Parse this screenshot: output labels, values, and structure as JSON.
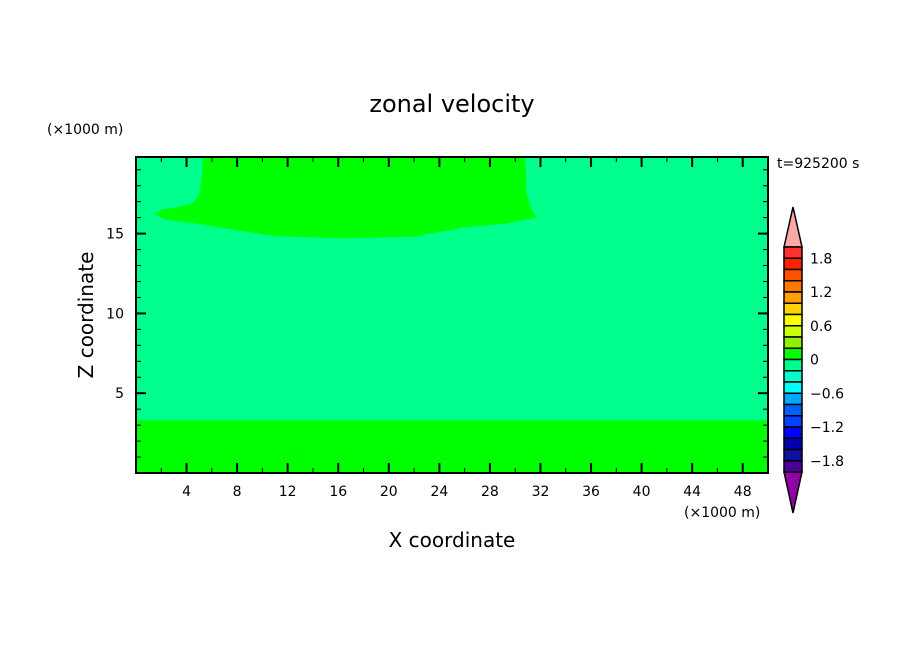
{
  "chart_data": {
    "type": "heatmap",
    "title": "zonal velocity",
    "xlabel": "X coordinate",
    "ylabel": "Z coordinate",
    "x_unit": "(×1000 m)",
    "y_unit": "(×1000 m)",
    "time_label": "t=925200 s",
    "xlim": [
      0,
      50
    ],
    "ylim": [
      0,
      19.8
    ],
    "x_ticks": [
      4,
      8,
      12,
      16,
      20,
      24,
      28,
      32,
      36,
      40,
      44,
      48
    ],
    "y_ticks": [
      5,
      10,
      15
    ],
    "background_level": [
      -0.2,
      0
    ],
    "regions": [
      {
        "level": [
          0,
          0.2
        ],
        "polygon": [
          [
            0,
            0
          ],
          [
            50,
            0
          ],
          [
            50,
            3.3
          ],
          [
            0,
            3.3
          ]
        ]
      },
      {
        "level": [
          0,
          0.2
        ],
        "polygon": [
          [
            5.3,
            19.8
          ],
          [
            5.2,
            18.5
          ],
          [
            5.0,
            17.4
          ],
          [
            4.5,
            16.9
          ],
          [
            3.5,
            16.7
          ],
          [
            2,
            16.5
          ],
          [
            1.5,
            16.2
          ],
          [
            2.2,
            15.9
          ],
          [
            5,
            15.6
          ],
          [
            8,
            15.2
          ],
          [
            11,
            14.85
          ],
          [
            16,
            14.7
          ],
          [
            22,
            14.8
          ],
          [
            24,
            15.1
          ],
          [
            26,
            15.4
          ],
          [
            29,
            15.6
          ],
          [
            31.7,
            16.0
          ],
          [
            31.3,
            16.5
          ],
          [
            30.9,
            17.5
          ],
          [
            30.8,
            19.8
          ]
        ]
      }
    ],
    "colorbar": {
      "min": -2.0,
      "max": 2.0,
      "step": 0.2,
      "tick_labels": [
        "1.8",
        "1.2",
        "0.6",
        "0",
        "−0.6",
        "−1.2",
        "−1.8"
      ],
      "tick_values": [
        1.8,
        1.2,
        0.6,
        0,
        -0.6,
        -1.2,
        -1.8
      ],
      "colors_top_to_bottom": [
        "#ff3030",
        "#ff2000",
        "#ff5000",
        "#ff7800",
        "#ffa000",
        "#ffd400",
        "#ffff00",
        "#ccff00",
        "#90f000",
        "#00ff00",
        "#00ff8c",
        "#00ffcc",
        "#00ffff",
        "#00a8ff",
        "#0060ff",
        "#0040ff",
        "#0000ff",
        "#0000b0",
        "#1010a0",
        "#4a0098"
      ],
      "over_color": "#ffa8a8",
      "under_color": "#9400a8"
    }
  }
}
